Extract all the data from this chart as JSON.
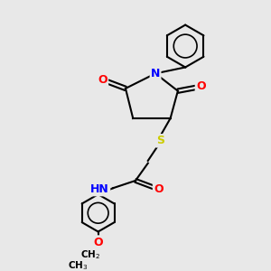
{
  "background_color": "#e8e8e8",
  "bond_color": "#000000",
  "atom_colors": {
    "O": "#ff0000",
    "N": "#0000ff",
    "S": "#cccc00",
    "H": "#5f9ea0",
    "C": "#000000"
  },
  "font_size_atom": 9,
  "font_size_small": 7.5,
  "title": ""
}
